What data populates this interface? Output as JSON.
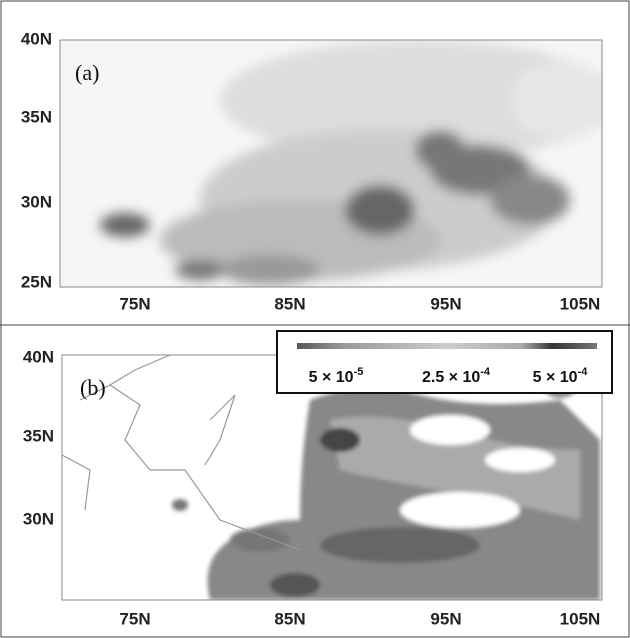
{
  "panels": [
    {
      "label": "(a)",
      "yticks": [
        "40N",
        "35N",
        "30N",
        "25N"
      ],
      "xticks": [
        "75N",
        "85N",
        "95N",
        "105N"
      ]
    },
    {
      "label": "(b)",
      "yticks": [
        "40N",
        "35N",
        "30N"
      ],
      "xticks": [
        "75N",
        "85N",
        "95N",
        "105N"
      ]
    }
  ],
  "colorbar": {
    "labels": [
      {
        "mantissa": "5 × 10",
        "exponent": "-5"
      },
      {
        "mantissa": "2.5 × 10",
        "exponent": "-4"
      },
      {
        "mantissa": "5 × 10",
        "exponent": "-4"
      }
    ]
  }
}
